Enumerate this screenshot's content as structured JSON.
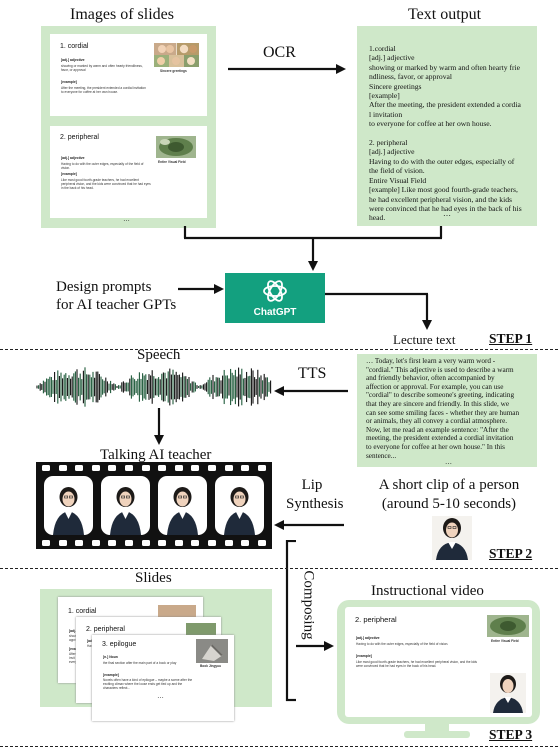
{
  "step1": {
    "images_title": "Images of slides",
    "text_output_title": "Text output",
    "ocr_label": "OCR",
    "design_prompts": [
      "Design prompts",
      "for AI teacher GPTs"
    ],
    "chatgpt_label": "ChatGPT",
    "lecture_text_label": "Lecture text",
    "step_label": "STEP 1",
    "slide1": {
      "heading": "1. cordial",
      "pos": "[adj.] adjective",
      "definition": "showing or marked by warm and often hearty friendliness, favor, or approval",
      "example_label": "[example]",
      "example": "After the meeting, the president extended a cordial invitation to everyone for coffee at her own house.",
      "image_caption": "Sincere greetings"
    },
    "slide2": {
      "heading": "2. peripheral",
      "pos": "[adj.] adjective",
      "definition": "Having to do with the outer edges, especially of the field of vision.",
      "example_label": "[example]",
      "example": "Like most good fourth-grade teachers, he had excellent peripheral vision, and the kids were convinced that he had eyes in the back of his head.",
      "image_caption": "Entire Visual Field"
    },
    "ellipsis": "…",
    "ocr_text": [
      "1.cordial",
      "[adj.] adjective",
      "showing or marked by warm and often hearty frie",
      "ndliness, favor, or approval",
      "Sincere greetings",
      "[example]",
      "After the meeting, the president extended a cordia",
      "l invitation",
      "to everyone for coffee at her own house.",
      "",
      "2. peripheral",
      "[adj.] adjective",
      "Having to do with the outer edges, especially of",
      "the field of vision.",
      "Entire Visual Field",
      "[example] Like most good fourth-grade teachers,",
      "he had excellent peripheral vision, and the kids",
      "were convinced that he had eyes in the back of his",
      "head."
    ]
  },
  "step2": {
    "speech_label": "Speech",
    "tts_label": "TTS",
    "talking_label": "Talking AI teacher",
    "lip_label": [
      "Lip",
      "Synthesis"
    ],
    "clip_label": [
      "A short clip of a person",
      "(around 5-10 seconds)"
    ],
    "step_label": "STEP 2",
    "lecture_text": [
      "… Today, let's first learn a very warm word -",
      "\"cordial.\" This adjective is used to describe a warm",
      "and friendly behavior, often accompanied by",
      "affection or approval. For example, you can use",
      "\"cordial\" to describe someone's greeting, indicating",
      "that they are sincere and friendly. In this slide, we",
      "can see some smiling faces - whether they are human",
      "or animals, they all convey a cordial atmosphere.",
      "Now, let me read an example sentence: \"After the",
      "meeting, the president extended a cordial invitation",
      "to everyone for coffee at her own house.\" In this",
      "sentence..."
    ],
    "ellipsis": "…"
  },
  "step3": {
    "slides_label": "Slides",
    "composing_label": "Composing",
    "video_label": "Instructional video",
    "step_label": "STEP 3",
    "stack": [
      {
        "heading": "1. cordial",
        "pos": "[adj.]",
        "lines": [
          "showi",
          "appro"
        ],
        "ex": "[exam",
        "exlines": [
          "After",
          "invit",
          "everyo"
        ]
      },
      {
        "heading": "2. peripheral",
        "pos": "[adj.] adj",
        "lines": [
          "Having to d"
        ]
      },
      {
        "heading": "3. epilogue",
        "pos": "[n.] Noun",
        "lines": [
          "the final section after the main part of a book or play"
        ],
        "ex": "[example]",
        "exlines": [
          "Novels often have a kind of epilogue – maybe a scene after the",
          "exciting climax where the loose ends get tied up and the",
          "characters reflect..."
        ],
        "image_caption": "Book Jingyuu"
      }
    ],
    "ellipsis": "…",
    "video": {
      "heading": "2. peripheral",
      "pos": "[adj.] adjective",
      "definition": "Having to do with the outer edges, especially of the field of vision.",
      "example_label": "[example]",
      "example": "Like most good fourth-grade teachers, he had excellent peripheral vision, and the kids were convinced that he had eyes in the back of his head.",
      "image_caption": "Entire Visual Field"
    }
  },
  "colors": {
    "panel_green": "#cfe8c9",
    "chatgpt_teal": "#13a07f",
    "film_black": "#111111",
    "monitor_green": "#cfe8c9"
  }
}
